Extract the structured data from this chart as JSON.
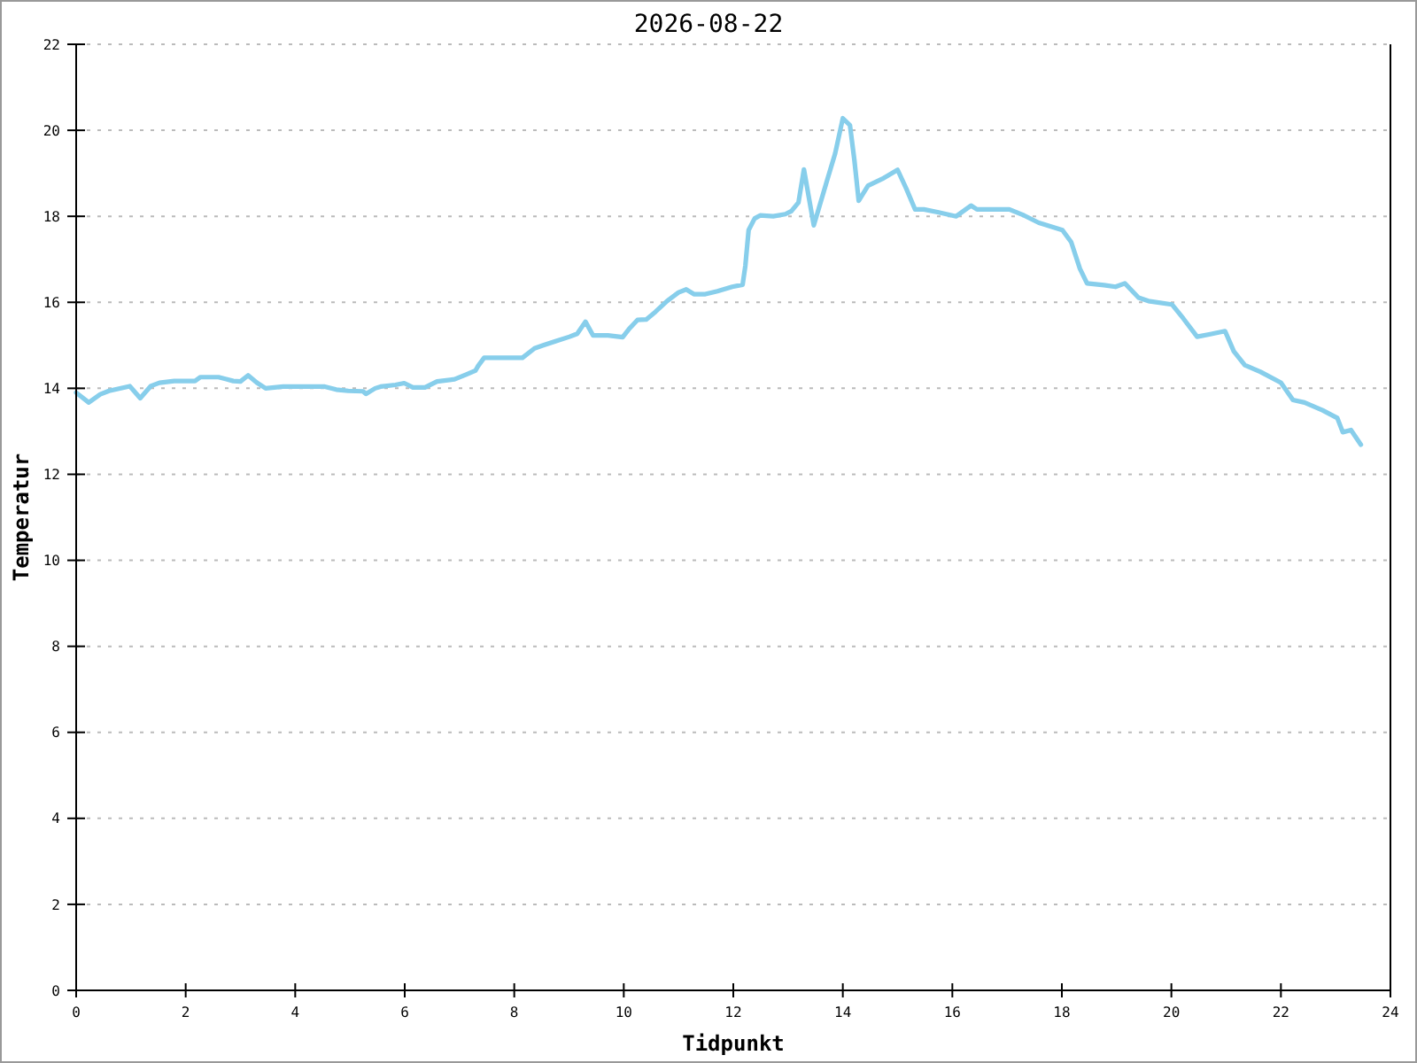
{
  "chart_data": {
    "type": "line",
    "title": "2026-08-22",
    "xlabel": "Tidpunkt",
    "ylabel": "Temperatur",
    "x": [
      0.0,
      0.23,
      0.44,
      0.6,
      0.98,
      1.17,
      1.36,
      1.52,
      1.79,
      2.17,
      2.27,
      2.6,
      2.87,
      3.0,
      3.14,
      3.3,
      3.46,
      3.78,
      4.54,
      4.75,
      4.97,
      5.24,
      5.29,
      5.46,
      5.56,
      5.83,
      5.99,
      6.15,
      6.37,
      6.59,
      6.91,
      7.12,
      7.29,
      7.34,
      7.45,
      8.15,
      8.37,
      8.53,
      8.74,
      9.01,
      9.15,
      9.3,
      9.44,
      9.71,
      9.98,
      10.09,
      10.25,
      10.41,
      10.58,
      10.79,
      11.0,
      11.14,
      11.28,
      11.49,
      11.71,
      11.98,
      12.17,
      12.22,
      12.28,
      12.39,
      12.49,
      12.73,
      12.95,
      13.06,
      13.19,
      13.29,
      13.41,
      13.47,
      13.57,
      13.7,
      13.86,
      14.0,
      14.13,
      14.21,
      14.29,
      14.46,
      14.72,
      15.0,
      15.16,
      15.32,
      15.48,
      15.75,
      16.07,
      16.34,
      16.45,
      17.04,
      17.31,
      17.58,
      18.01,
      18.17,
      18.33,
      18.46,
      18.77,
      18.98,
      19.15,
      19.4,
      19.58,
      20.01,
      20.22,
      20.47,
      20.71,
      20.98,
      21.14,
      21.34,
      21.63,
      22.0,
      22.22,
      22.43,
      22.76,
      23.03,
      23.13,
      23.28,
      23.46
    ],
    "series": [
      {
        "color": "#87ceeb",
        "values": [
          13.9,
          13.67,
          13.86,
          13.94,
          14.05,
          13.77,
          14.05,
          14.13,
          14.17,
          14.17,
          14.26,
          14.26,
          14.17,
          14.16,
          14.3,
          14.13,
          14.0,
          14.04,
          14.04,
          13.97,
          13.94,
          13.93,
          13.87,
          14.0,
          14.04,
          14.08,
          14.12,
          14.02,
          14.02,
          14.16,
          14.21,
          14.32,
          14.41,
          14.52,
          14.71,
          14.71,
          14.93,
          15.0,
          15.09,
          15.2,
          15.27,
          15.55,
          15.23,
          15.23,
          15.19,
          15.37,
          15.59,
          15.6,
          15.78,
          16.03,
          16.23,
          16.3,
          16.19,
          16.19,
          16.26,
          16.36,
          16.41,
          16.85,
          17.68,
          17.95,
          18.02,
          18.0,
          18.05,
          18.12,
          18.32,
          19.09,
          18.22,
          17.79,
          18.22,
          18.78,
          19.46,
          20.28,
          20.12,
          19.32,
          18.36,
          18.71,
          18.87,
          19.08,
          18.64,
          18.16,
          18.16,
          18.09,
          18.0,
          18.25,
          18.16,
          18.16,
          18.02,
          17.85,
          17.68,
          17.4,
          16.78,
          16.44,
          16.4,
          16.36,
          16.44,
          16.11,
          16.03,
          15.95,
          15.62,
          15.2,
          15.26,
          15.33,
          14.86,
          14.54,
          14.38,
          14.13,
          13.73,
          13.67,
          13.49,
          13.31,
          12.98,
          13.03,
          12.69
        ]
      }
    ],
    "xlim": [
      0,
      24
    ],
    "ylim": [
      0,
      22
    ],
    "xticks": [
      0,
      2,
      4,
      6,
      8,
      10,
      12,
      14,
      16,
      18,
      20,
      22,
      24
    ],
    "yticks": [
      0,
      2,
      4,
      6,
      8,
      10,
      12,
      14,
      16,
      18,
      20,
      22
    ],
    "grid": "y"
  }
}
